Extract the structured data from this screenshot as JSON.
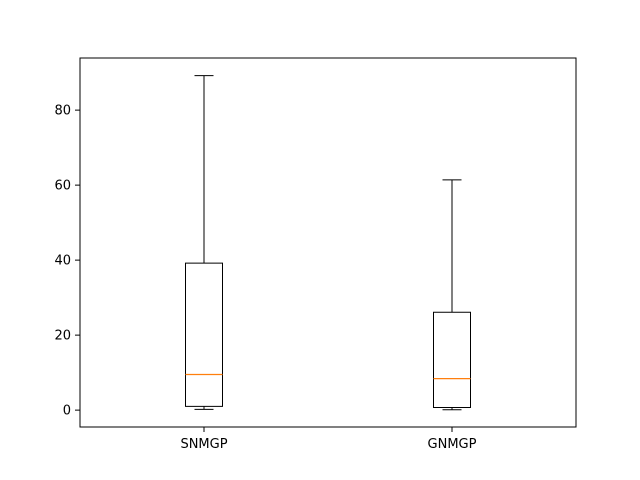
{
  "chart_data": {
    "type": "box",
    "title": "",
    "xlabel": "",
    "ylabel": "",
    "categories": [
      "SNMGP",
      "GNMGP"
    ],
    "boxes": [
      {
        "label": "SNMGP",
        "whisker_low": 0.2,
        "q1": 1.0,
        "median": 9.5,
        "q3": 39.2,
        "whisker_high": 89.2
      },
      {
        "label": "GNMGP",
        "whisker_low": 0.1,
        "q1": 0.7,
        "median": 8.4,
        "q3": 26.1,
        "whisker_high": 61.4
      }
    ],
    "ylim": [
      -4.5,
      93.9
    ],
    "yticks": [
      0,
      20,
      40,
      60,
      80
    ],
    "grid": false,
    "colors": {
      "box": "#000000",
      "median": "#ff7f0e",
      "axes": "#000000"
    }
  }
}
